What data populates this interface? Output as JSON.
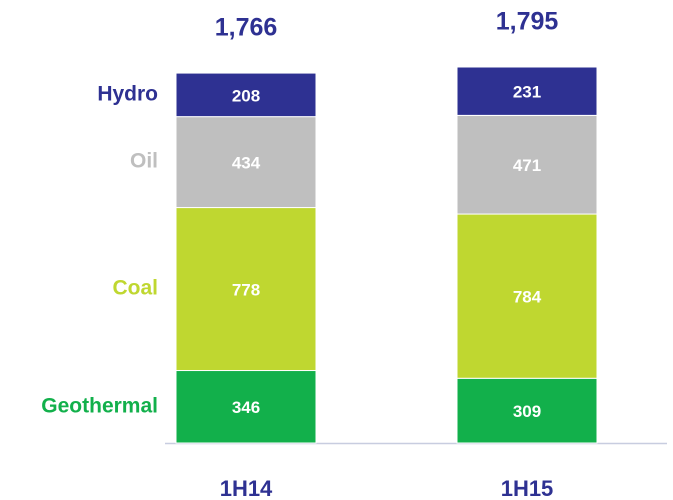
{
  "chart_data": {
    "type": "stacked_bar",
    "categories": [
      "1H14",
      "1H15"
    ],
    "series": [
      {
        "name": "Geothermal",
        "color": "#12b04b",
        "values": [
          346,
          309
        ]
      },
      {
        "name": "Coal",
        "color": "#bfd730",
        "values": [
          778,
          784
        ]
      },
      {
        "name": "Oil",
        "color": "#bfbfbf",
        "values": [
          434,
          471
        ]
      },
      {
        "name": "Hydro",
        "color": "#2e3192",
        "values": [
          208,
          231
        ]
      }
    ],
    "totals": [
      1766,
      1795
    ],
    "total_labels": [
      "1,766",
      "1,795"
    ]
  }
}
